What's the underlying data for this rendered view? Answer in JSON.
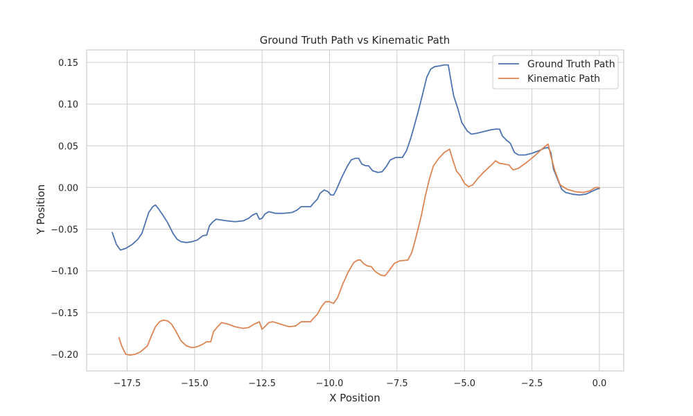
{
  "chart_data": {
    "type": "line",
    "title": "Ground Truth Path vs Kinematic Path",
    "xlabel": "X Position",
    "ylabel": "Y Position",
    "xlim": [
      -19.0,
      0.9
    ],
    "ylim": [
      -0.22,
      0.165
    ],
    "xticks": [
      -17.5,
      -15.0,
      -12.5,
      -10.0,
      -7.5,
      -5.0,
      -2.5,
      0.0
    ],
    "xtick_labels": [
      "−17.5",
      "−15.0",
      "−12.5",
      "−10.0",
      "−7.5",
      "−5.0",
      "−2.5",
      "0.0"
    ],
    "yticks": [
      0.15,
      0.1,
      0.05,
      0.0,
      -0.05,
      -0.1,
      -0.15,
      -0.2
    ],
    "ytick_labels": [
      "0.15",
      "0.10",
      "0.05",
      "0.00",
      "−0.05",
      "−0.10",
      "−0.15",
      "−0.20"
    ],
    "grid": true,
    "legend": "top-right",
    "series": [
      {
        "name": "Ground Truth Path",
        "color": "#4c72b0",
        "points": [
          [
            -18.05,
            -0.054
          ],
          [
            -17.9,
            -0.068
          ],
          [
            -17.75,
            -0.075
          ],
          [
            -17.55,
            -0.073
          ],
          [
            -17.3,
            -0.068
          ],
          [
            -17.1,
            -0.062
          ],
          [
            -16.95,
            -0.055
          ],
          [
            -16.8,
            -0.04
          ],
          [
            -16.7,
            -0.03
          ],
          [
            -16.55,
            -0.023
          ],
          [
            -16.45,
            -0.021
          ],
          [
            -16.35,
            -0.025
          ],
          [
            -16.2,
            -0.032
          ],
          [
            -16.0,
            -0.042
          ],
          [
            -15.8,
            -0.055
          ],
          [
            -15.65,
            -0.062
          ],
          [
            -15.5,
            -0.065
          ],
          [
            -15.3,
            -0.066
          ],
          [
            -15.1,
            -0.065
          ],
          [
            -14.9,
            -0.063
          ],
          [
            -14.7,
            -0.058
          ],
          [
            -14.55,
            -0.057
          ],
          [
            -14.45,
            -0.046
          ],
          [
            -14.35,
            -0.042
          ],
          [
            -14.2,
            -0.038
          ],
          [
            -14.0,
            -0.039
          ],
          [
            -13.8,
            -0.04
          ],
          [
            -13.5,
            -0.041
          ],
          [
            -13.2,
            -0.04
          ],
          [
            -13.0,
            -0.037
          ],
          [
            -12.85,
            -0.033
          ],
          [
            -12.7,
            -0.031
          ],
          [
            -12.6,
            -0.038
          ],
          [
            -12.5,
            -0.037
          ],
          [
            -12.4,
            -0.032
          ],
          [
            -12.25,
            -0.029
          ],
          [
            -12.0,
            -0.031
          ],
          [
            -11.7,
            -0.031
          ],
          [
            -11.4,
            -0.03
          ],
          [
            -11.2,
            -0.027
          ],
          [
            -11.05,
            -0.023
          ],
          [
            -10.7,
            -0.023
          ],
          [
            -10.6,
            -0.019
          ],
          [
            -10.45,
            -0.014
          ],
          [
            -10.35,
            -0.007
          ],
          [
            -10.2,
            -0.003
          ],
          [
            -10.05,
            -0.005
          ],
          [
            -9.95,
            -0.009
          ],
          [
            -9.85,
            -0.009
          ],
          [
            -9.75,
            -0.003
          ],
          [
            -9.55,
            0.012
          ],
          [
            -9.35,
            0.025
          ],
          [
            -9.2,
            0.033
          ],
          [
            -9.05,
            0.035
          ],
          [
            -8.92,
            0.035
          ],
          [
            -8.8,
            0.028
          ],
          [
            -8.65,
            0.026
          ],
          [
            -8.55,
            0.026
          ],
          [
            -8.4,
            0.02
          ],
          [
            -8.2,
            0.018
          ],
          [
            -8.05,
            0.019
          ],
          [
            -7.9,
            0.025
          ],
          [
            -7.75,
            0.033
          ],
          [
            -7.55,
            0.036
          ],
          [
            -7.3,
            0.036
          ],
          [
            -7.15,
            0.044
          ],
          [
            -7.0,
            0.058
          ],
          [
            -6.85,
            0.075
          ],
          [
            -6.7,
            0.093
          ],
          [
            -6.55,
            0.112
          ],
          [
            -6.4,
            0.132
          ],
          [
            -6.25,
            0.142
          ],
          [
            -6.1,
            0.145
          ],
          [
            -5.9,
            0.146
          ],
          [
            -5.75,
            0.147
          ],
          [
            -5.6,
            0.147
          ],
          [
            -5.5,
            0.128
          ],
          [
            -5.4,
            0.11
          ],
          [
            -5.25,
            0.095
          ],
          [
            -5.1,
            0.078
          ],
          [
            -4.9,
            0.068
          ],
          [
            -4.75,
            0.064
          ],
          [
            -4.55,
            0.065
          ],
          [
            -4.3,
            0.067
          ],
          [
            -4.05,
            0.069
          ],
          [
            -3.85,
            0.07
          ],
          [
            -3.7,
            0.07
          ],
          [
            -3.6,
            0.062
          ],
          [
            -3.45,
            0.057
          ],
          [
            -3.3,
            0.053
          ],
          [
            -3.15,
            0.042
          ],
          [
            -3.0,
            0.039
          ],
          [
            -2.75,
            0.039
          ],
          [
            -2.5,
            0.041
          ],
          [
            -2.25,
            0.044
          ],
          [
            -2.05,
            0.047
          ],
          [
            -1.9,
            0.048
          ],
          [
            -1.8,
            0.042
          ],
          [
            -1.7,
            0.022
          ],
          [
            -1.55,
            0.01
          ],
          [
            -1.4,
            -0.002
          ],
          [
            -1.25,
            -0.006
          ],
          [
            -1.0,
            -0.008
          ],
          [
            -0.75,
            -0.009
          ],
          [
            -0.5,
            -0.008
          ],
          [
            -0.3,
            -0.005
          ],
          [
            -0.1,
            -0.002
          ],
          [
            0.0,
            -0.001
          ]
        ]
      },
      {
        "name": "Kinematic Path",
        "color": "#dd8452",
        "points": [
          [
            -17.8,
            -0.18
          ],
          [
            -17.7,
            -0.19
          ],
          [
            -17.55,
            -0.2
          ],
          [
            -17.4,
            -0.201
          ],
          [
            -17.2,
            -0.2
          ],
          [
            -17.0,
            -0.197
          ],
          [
            -16.75,
            -0.19
          ],
          [
            -16.6,
            -0.178
          ],
          [
            -16.45,
            -0.167
          ],
          [
            -16.3,
            -0.161
          ],
          [
            -16.15,
            -0.159
          ],
          [
            -16.0,
            -0.16
          ],
          [
            -15.85,
            -0.164
          ],
          [
            -15.7,
            -0.172
          ],
          [
            -15.5,
            -0.184
          ],
          [
            -15.3,
            -0.19
          ],
          [
            -15.1,
            -0.192
          ],
          [
            -14.9,
            -0.191
          ],
          [
            -14.7,
            -0.188
          ],
          [
            -14.55,
            -0.185
          ],
          [
            -14.4,
            -0.185
          ],
          [
            -14.3,
            -0.173
          ],
          [
            -14.15,
            -0.167
          ],
          [
            -14.0,
            -0.162
          ],
          [
            -13.75,
            -0.164
          ],
          [
            -13.5,
            -0.167
          ],
          [
            -13.2,
            -0.169
          ],
          [
            -13.0,
            -0.168
          ],
          [
            -12.8,
            -0.164
          ],
          [
            -12.6,
            -0.161
          ],
          [
            -12.5,
            -0.17
          ],
          [
            -12.4,
            -0.167
          ],
          [
            -12.25,
            -0.162
          ],
          [
            -12.1,
            -0.161
          ],
          [
            -11.8,
            -0.164
          ],
          [
            -11.5,
            -0.167
          ],
          [
            -11.25,
            -0.166
          ],
          [
            -11.05,
            -0.161
          ],
          [
            -10.7,
            -0.161
          ],
          [
            -10.6,
            -0.157
          ],
          [
            -10.45,
            -0.152
          ],
          [
            -10.3,
            -0.143
          ],
          [
            -10.15,
            -0.137
          ],
          [
            -10.0,
            -0.137
          ],
          [
            -9.85,
            -0.139
          ],
          [
            -9.7,
            -0.132
          ],
          [
            -9.5,
            -0.115
          ],
          [
            -9.3,
            -0.101
          ],
          [
            -9.1,
            -0.09
          ],
          [
            -8.95,
            -0.087
          ],
          [
            -8.85,
            -0.087
          ],
          [
            -8.75,
            -0.091
          ],
          [
            -8.6,
            -0.094
          ],
          [
            -8.45,
            -0.095
          ],
          [
            -8.3,
            -0.101
          ],
          [
            -8.1,
            -0.105
          ],
          [
            -7.95,
            -0.106
          ],
          [
            -7.8,
            -0.1
          ],
          [
            -7.6,
            -0.091
          ],
          [
            -7.4,
            -0.088
          ],
          [
            -7.1,
            -0.087
          ],
          [
            -6.95,
            -0.078
          ],
          [
            -6.8,
            -0.06
          ],
          [
            -6.6,
            -0.034
          ],
          [
            -6.45,
            -0.01
          ],
          [
            -6.3,
            0.01
          ],
          [
            -6.15,
            0.026
          ],
          [
            -5.95,
            0.035
          ],
          [
            -5.75,
            0.042
          ],
          [
            -5.55,
            0.046
          ],
          [
            -5.45,
            0.035
          ],
          [
            -5.3,
            0.02
          ],
          [
            -5.15,
            0.014
          ],
          [
            -5.0,
            0.005
          ],
          [
            -4.85,
            0.001
          ],
          [
            -4.7,
            0.003
          ],
          [
            -4.5,
            0.011
          ],
          [
            -4.3,
            0.018
          ],
          [
            -4.0,
            0.027
          ],
          [
            -3.85,
            0.032
          ],
          [
            -3.7,
            0.029
          ],
          [
            -3.5,
            0.028
          ],
          [
            -3.35,
            0.027
          ],
          [
            -3.2,
            0.021
          ],
          [
            -3.0,
            0.023
          ],
          [
            -2.7,
            0.03
          ],
          [
            -2.4,
            0.038
          ],
          [
            -2.1,
            0.047
          ],
          [
            -1.9,
            0.052
          ],
          [
            -1.8,
            0.038
          ],
          [
            -1.65,
            0.02
          ],
          [
            -1.45,
            0.003
          ],
          [
            -1.2,
            -0.002
          ],
          [
            -0.9,
            -0.005
          ],
          [
            -0.6,
            -0.006
          ],
          [
            -0.35,
            -0.004
          ],
          [
            -0.15,
            0.0
          ],
          [
            0.0,
            0.0
          ]
        ]
      }
    ]
  }
}
